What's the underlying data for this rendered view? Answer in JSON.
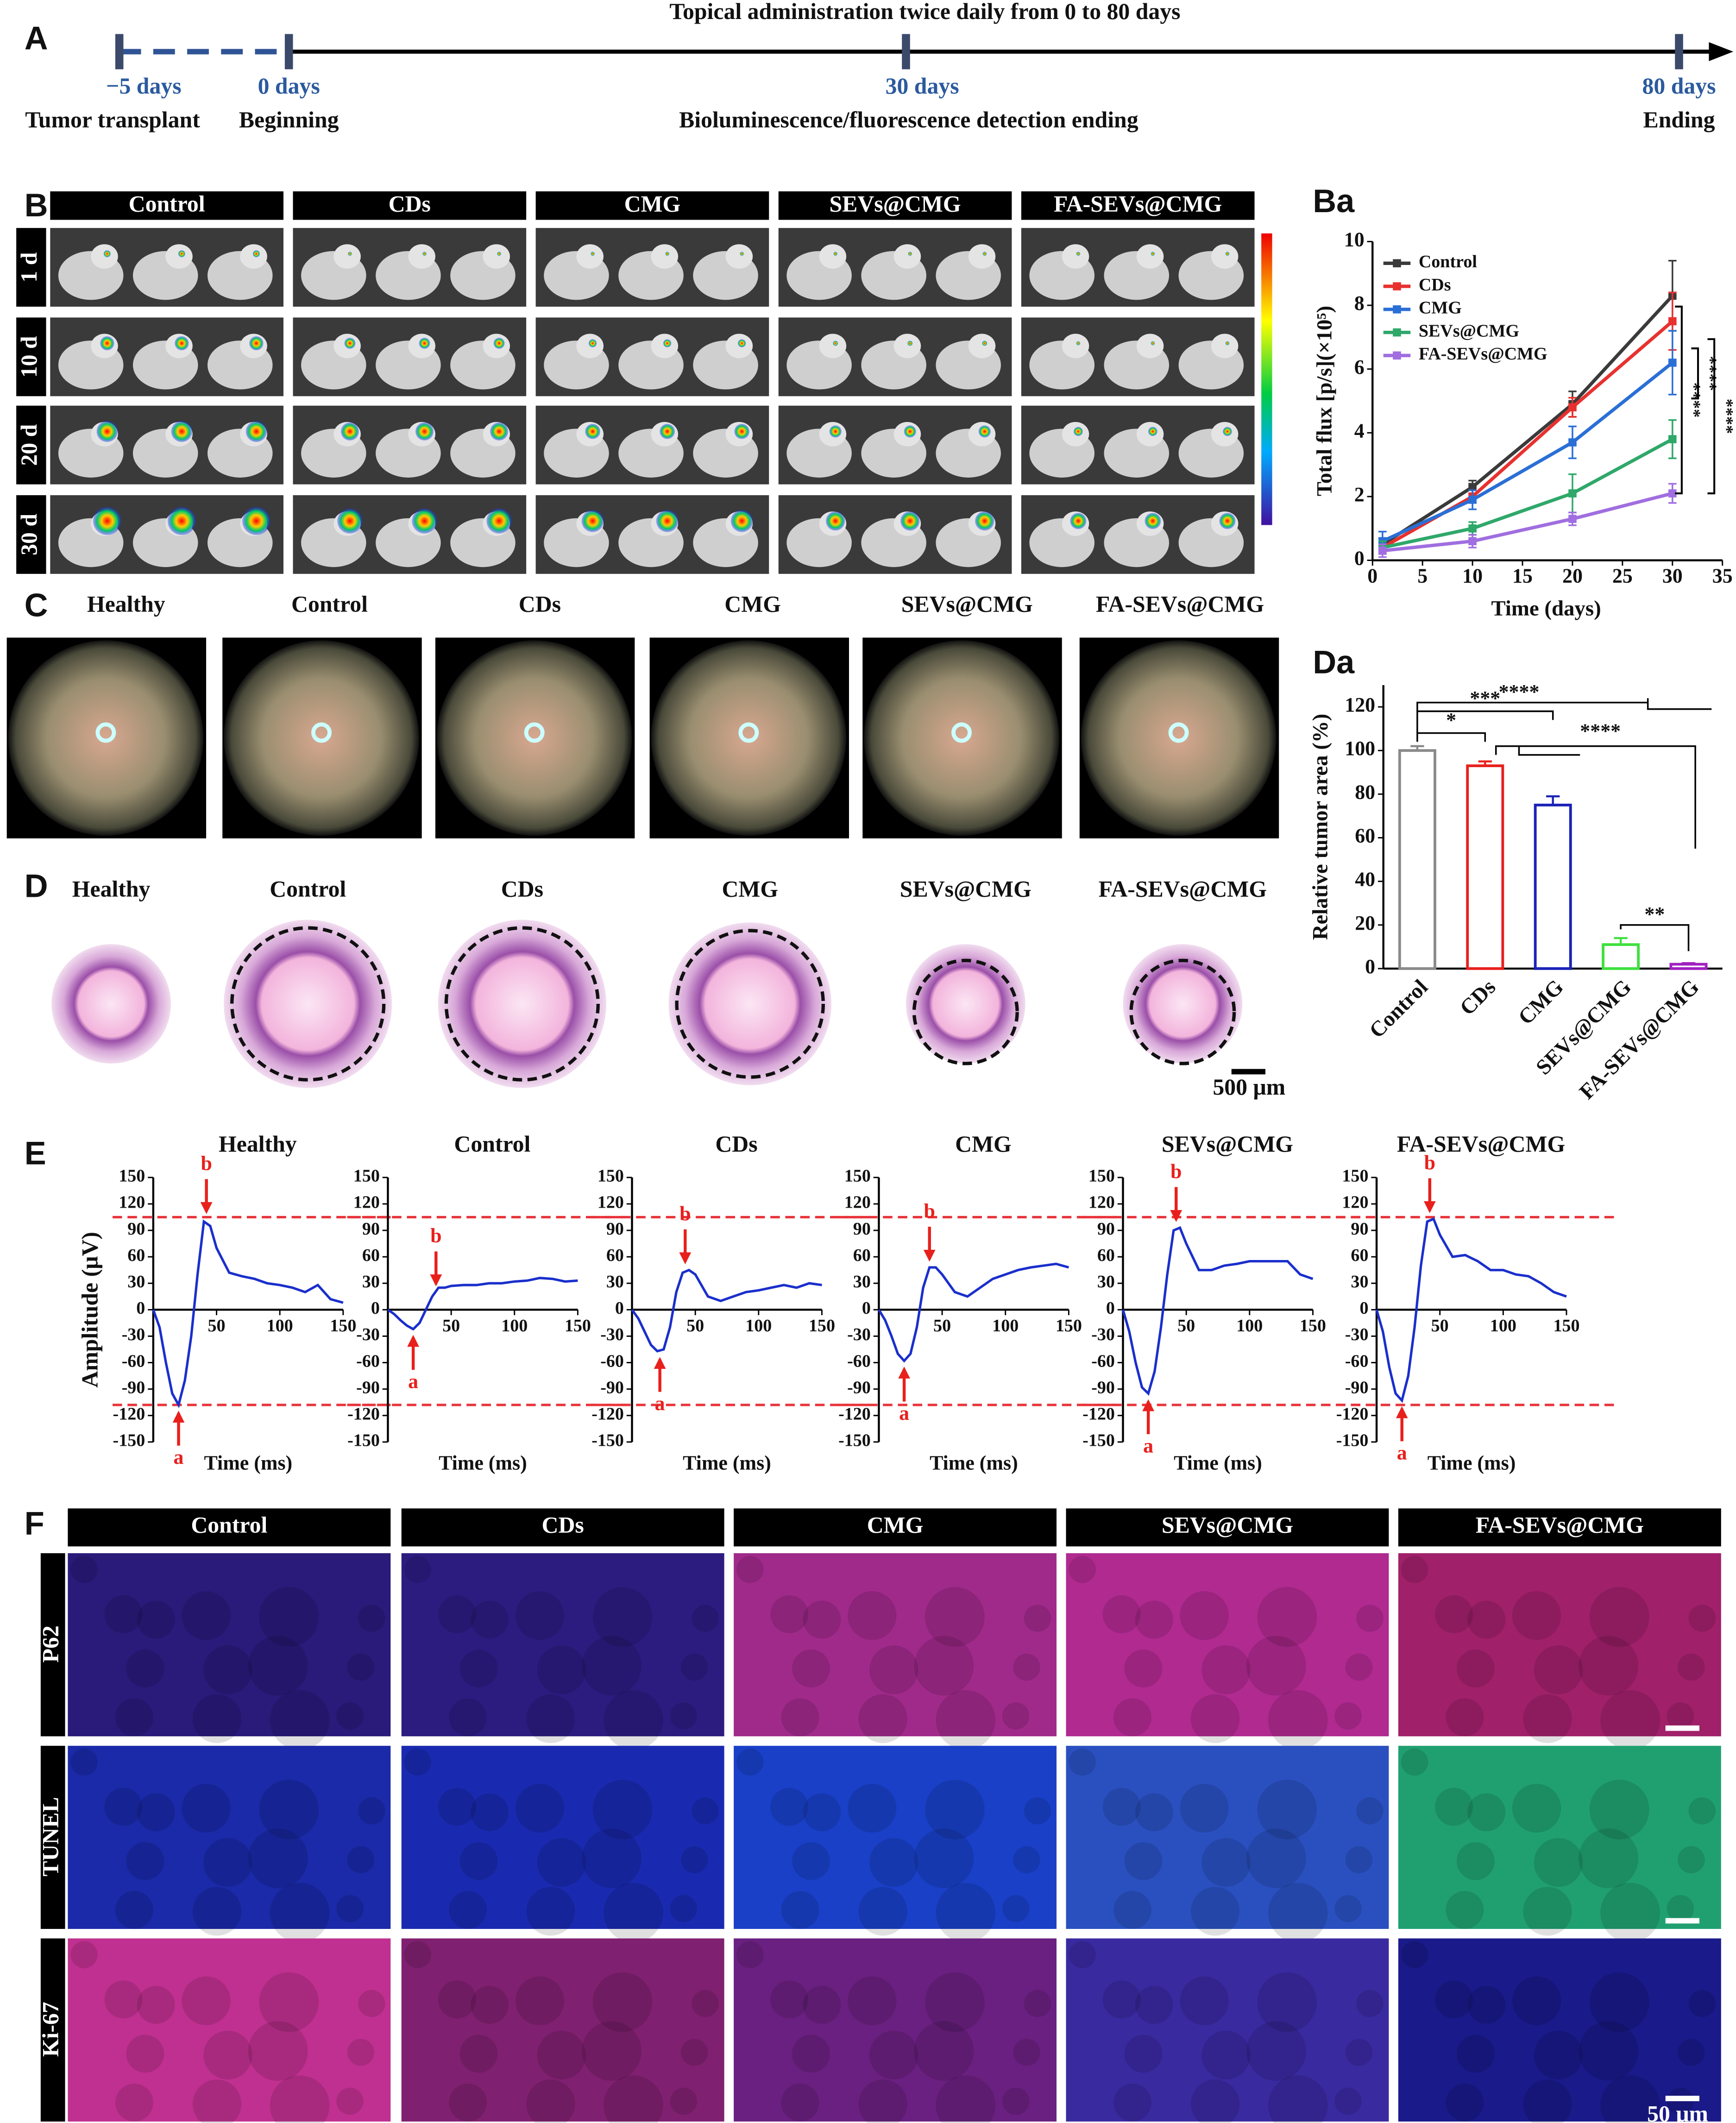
{
  "panel_a": {
    "label": "A",
    "title": "Topical administration twice daily from 0 to 80 days",
    "points": [
      {
        "day": "−5 days",
        "event": "Tumor transplant"
      },
      {
        "day": "0 days",
        "event": "Beginning"
      },
      {
        "day": "30 days",
        "event": "Bioluminescence/fluorescence detection ending"
      },
      {
        "day": "80 days",
        "event": "Ending"
      }
    ]
  },
  "panel_b": {
    "label": "B",
    "groups": [
      "Control",
      "CDs",
      "CMG",
      "SEVs@CMG",
      "FA-SEVs@CMG"
    ],
    "rows": [
      "1 d",
      "10 d",
      "20 d",
      "30 d"
    ]
  },
  "panel_c": {
    "label": "C",
    "groups": [
      "Healthy",
      "Control",
      "CDs",
      "CMG",
      "SEVs@CMG",
      "FA-SEVs@CMG"
    ]
  },
  "panel_d": {
    "label": "D",
    "groups": [
      "Healthy",
      "Control",
      "CDs",
      "CMG",
      "SEVs@CMG",
      "FA-SEVs@CMG"
    ],
    "scale_bar": "500 μm"
  },
  "panel_e": {
    "label": "E"
  },
  "panel_f": {
    "label": "F",
    "groups": [
      "Control",
      "CDs",
      "CMG",
      "SEVs@CMG",
      "FA-SEVs@CMG"
    ],
    "rows": [
      "P62",
      "TUNEL",
      "Ki-67"
    ],
    "scale_bar": "50 μm"
  },
  "chart_data": [
    {
      "type": "line",
      "label": "Ba",
      "y_label": "Total flux [p/s](×10⁵)",
      "x_label": "Time (days)",
      "legend": "upper left",
      "xlim": [
        0,
        35
      ],
      "xticks": [
        0,
        5,
        10,
        15,
        20,
        25,
        30,
        35
      ],
      "ylim": [
        0,
        10
      ],
      "yticks": [
        0,
        2,
        4,
        6,
        8,
        10
      ],
      "x": [
        1,
        10,
        20,
        30
      ],
      "series": [
        {
          "name": "Control",
          "color": "#3a3a3a",
          "values": [
            0.5,
            2.3,
            4.9,
            8.3
          ],
          "errors": [
            0.2,
            0.2,
            0.4,
            1.1
          ]
        },
        {
          "name": "CDs",
          "color": "#e8312f",
          "values": [
            0.4,
            2.0,
            4.8,
            7.5
          ],
          "errors": [
            0.2,
            0.2,
            0.3,
            0.9
          ]
        },
        {
          "name": "CMG",
          "color": "#2a6fd6",
          "values": [
            0.6,
            1.9,
            3.7,
            6.2
          ],
          "errors": [
            0.3,
            0.3,
            0.5,
            1.0
          ]
        },
        {
          "name": "SEVs@CMG",
          "color": "#2fa86a",
          "values": [
            0.4,
            1.0,
            2.1,
            3.8
          ],
          "errors": [
            0.2,
            0.2,
            0.6,
            0.6
          ]
        },
        {
          "name": "FA-SEVs@CMG",
          "color": "#a06ee0",
          "values": [
            0.3,
            0.6,
            1.3,
            2.1
          ],
          "errors": [
            0.2,
            0.2,
            0.2,
            0.3
          ]
        }
      ],
      "annotations": [
        "****",
        "****",
        "****"
      ]
    },
    {
      "type": "bar",
      "label": "Da",
      "y_label": "Relative tumor area (%)",
      "categories": [
        "Control",
        "CDs",
        "CMG",
        "SEVs@CMG",
        "FA-SEVs@CMG"
      ],
      "values": [
        100,
        93,
        75,
        11,
        2
      ],
      "errors": [
        2,
        2,
        4,
        3,
        0.5
      ],
      "colors": [
        "#8a8a8a",
        "#e8201c",
        "#1a22b8",
        "#3ee03e",
        "#a020c0"
      ],
      "ylim": [
        0,
        130
      ],
      "yticks": [
        0,
        20,
        40,
        60,
        80,
        100,
        120
      ],
      "annotations": [
        "*",
        "***",
        "****",
        "****",
        "**"
      ]
    },
    {
      "type": "line",
      "title": "Healthy",
      "y_label": "Amplitude (μV)",
      "x_label": "Time (ms)",
      "xlim": [
        0,
        150
      ],
      "xticks": [
        50,
        100,
        150
      ],
      "ylim": [
        -150,
        150
      ],
      "yticks": [
        -150,
        -120,
        -90,
        -60,
        -30,
        0,
        30,
        60,
        90,
        120,
        150
      ],
      "x": [
        0,
        5,
        10,
        15,
        20,
        25,
        30,
        35,
        40,
        45,
        50,
        60,
        70,
        80,
        90,
        100,
        110,
        120,
        130,
        140,
        150
      ],
      "series": [
        {
          "color": "#1a2fcc",
          "values": [
            0,
            -20,
            -60,
            -95,
            -108,
            -80,
            -30,
            40,
            100,
            95,
            70,
            42,
            38,
            35,
            30,
            28,
            25,
            20,
            28,
            12,
            8
          ]
        }
      ],
      "ref_lines": [
        105,
        -108
      ],
      "ref_color": "#e8333a",
      "annotations": [
        {
          "text": "a",
          "x": 20,
          "y": -108
        },
        {
          "text": "b",
          "x": 42,
          "y": 102
        }
      ]
    },
    {
      "type": "line",
      "title": "Control",
      "x_label": "Time (ms)",
      "xlim": [
        0,
        150
      ],
      "xticks": [
        50,
        100,
        150
      ],
      "ylim": [
        -150,
        150
      ],
      "yticks": [
        -150,
        -120,
        -90,
        -60,
        -30,
        0,
        30,
        60,
        90,
        120,
        150
      ],
      "x": [
        0,
        5,
        10,
        15,
        20,
        25,
        30,
        35,
        40,
        45,
        50,
        60,
        70,
        80,
        90,
        100,
        110,
        120,
        130,
        140,
        150
      ],
      "series": [
        {
          "color": "#1a2fcc",
          "values": [
            0,
            -5,
            -12,
            -18,
            -22,
            -15,
            0,
            15,
            25,
            25,
            27,
            28,
            28,
            30,
            30,
            32,
            33,
            36,
            35,
            32,
            33
          ]
        }
      ],
      "ref_lines": [
        105,
        -108
      ],
      "ref_color": "#e8333a",
      "annotations": [
        {
          "text": "a",
          "x": 20,
          "y": -22
        },
        {
          "text": "b",
          "x": 38,
          "y": 20
        }
      ]
    },
    {
      "type": "line",
      "title": "CDs",
      "x_label": "Time (ms)",
      "xlim": [
        0,
        150
      ],
      "xticks": [
        50,
        100,
        150
      ],
      "ylim": [
        -150,
        150
      ],
      "yticks": [
        -150,
        -120,
        -90,
        -60,
        -30,
        0,
        30,
        60,
        90,
        120,
        150
      ],
      "x": [
        0,
        5,
        10,
        15,
        20,
        25,
        30,
        35,
        40,
        45,
        50,
        60,
        70,
        80,
        90,
        100,
        110,
        120,
        130,
        140,
        150
      ],
      "series": [
        {
          "color": "#1a2fcc",
          "values": [
            0,
            -10,
            -25,
            -40,
            -47,
            -45,
            -20,
            20,
            42,
            45,
            40,
            15,
            10,
            15,
            20,
            22,
            25,
            28,
            25,
            30,
            28
          ]
        }
      ],
      "ref_lines": [
        105,
        -108
      ],
      "ref_color": "#e8333a",
      "annotations": [
        {
          "text": "a",
          "x": 22,
          "y": -47
        },
        {
          "text": "b",
          "x": 42,
          "y": 45
        }
      ]
    },
    {
      "type": "line",
      "title": "CMG",
      "x_label": "Time (ms)",
      "xlim": [
        0,
        150
      ],
      "xticks": [
        50,
        100,
        150
      ],
      "ylim": [
        -150,
        150
      ],
      "yticks": [
        -150,
        -120,
        -90,
        -60,
        -30,
        0,
        30,
        60,
        90,
        120,
        150
      ],
      "x": [
        0,
        5,
        10,
        15,
        20,
        25,
        30,
        35,
        40,
        45,
        50,
        60,
        70,
        80,
        90,
        100,
        110,
        120,
        130,
        140,
        150
      ],
      "series": [
        {
          "color": "#1a2fcc",
          "values": [
            0,
            -12,
            -30,
            -50,
            -58,
            -50,
            -20,
            25,
            48,
            48,
            40,
            20,
            15,
            25,
            35,
            40,
            45,
            48,
            50,
            52,
            48
          ]
        }
      ],
      "ref_lines": [
        105,
        -108
      ],
      "ref_color": "#e8333a",
      "annotations": [
        {
          "text": "a",
          "x": 20,
          "y": -58
        },
        {
          "text": "b",
          "x": 40,
          "y": 48
        }
      ]
    },
    {
      "type": "line",
      "title": "SEVs@CMG",
      "x_label": "Time (ms)",
      "xlim": [
        0,
        150
      ],
      "xticks": [
        50,
        100,
        150
      ],
      "ylim": [
        -150,
        150
      ],
      "yticks": [
        -150,
        -120,
        -90,
        -60,
        -30,
        0,
        30,
        60,
        90,
        120,
        150
      ],
      "x": [
        0,
        5,
        10,
        15,
        20,
        25,
        30,
        35,
        40,
        45,
        50,
        60,
        70,
        80,
        90,
        100,
        110,
        120,
        130,
        140,
        150
      ],
      "series": [
        {
          "color": "#1a2fcc",
          "values": [
            0,
            -25,
            -60,
            -88,
            -95,
            -70,
            -20,
            40,
            90,
            93,
            75,
            45,
            45,
            50,
            52,
            55,
            55,
            55,
            55,
            40,
            35
          ]
        }
      ],
      "ref_lines": [
        105,
        -108
      ],
      "ref_color": "#e8333a",
      "annotations": [
        {
          "text": "a",
          "x": 20,
          "y": -95
        },
        {
          "text": "b",
          "x": 42,
          "y": 93
        }
      ]
    },
    {
      "type": "line",
      "title": "FA-SEVs@CMG",
      "x_label": "Time (ms)",
      "xlim": [
        0,
        150
      ],
      "xticks": [
        50,
        100,
        150
      ],
      "ylim": [
        -150,
        150
      ],
      "yticks": [
        -150,
        -120,
        -90,
        -60,
        -30,
        0,
        30,
        60,
        90,
        120,
        150
      ],
      "x": [
        0,
        5,
        10,
        15,
        20,
        25,
        30,
        35,
        40,
        45,
        50,
        60,
        70,
        80,
        90,
        100,
        110,
        120,
        130,
        140,
        150
      ],
      "series": [
        {
          "color": "#1a2fcc",
          "values": [
            0,
            -25,
            -65,
            -95,
            -103,
            -75,
            -20,
            50,
            100,
            103,
            85,
            60,
            62,
            55,
            45,
            45,
            40,
            38,
            30,
            20,
            15
          ]
        }
      ],
      "ref_lines": [
        105,
        -108
      ],
      "ref_color": "#e8333a",
      "annotations": [
        {
          "text": "a",
          "x": 20,
          "y": -103
        },
        {
          "text": "b",
          "x": 42,
          "y": 103
        }
      ]
    }
  ]
}
